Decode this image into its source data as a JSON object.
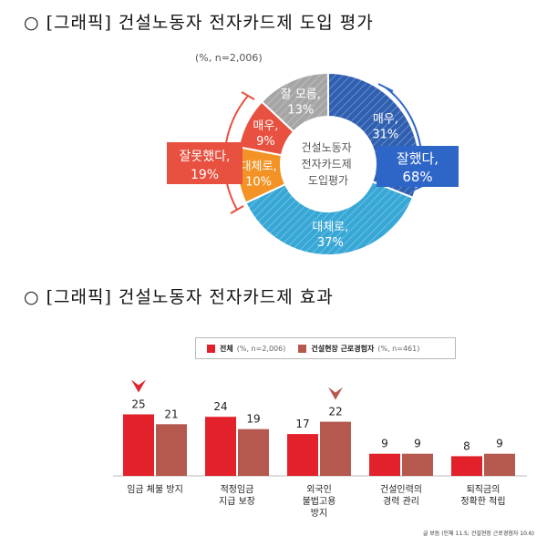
{
  "section1": {
    "title": "○ [그래픽] 건설노동자 전자카드제 도입 평가"
  },
  "section2": {
    "title": "○ [그래픽] 건설노동자 전자카드제 효과"
  },
  "chart_data": [
    {
      "type": "pie",
      "subtitle": "(%, n=2,006)",
      "center_label": [
        "건설노동자",
        "전자카드제",
        "도입평가"
      ],
      "slices": [
        {
          "label": "매우,",
          "value": 31,
          "color": "#2f5fb0",
          "hatch": true
        },
        {
          "label": "대체로,",
          "value": 37,
          "color": "#37a7d6",
          "hatch": true
        },
        {
          "label": "대체로,",
          "value": 10,
          "color": "#f39325",
          "hatch": false
        },
        {
          "label": "매우,",
          "value": 9,
          "color": "#e8503f",
          "hatch": false
        },
        {
          "label": "잘 모름,",
          "value": 13,
          "color": "#a5a5a5",
          "hatch": true
        }
      ],
      "callouts": [
        {
          "label": "잘했다,",
          "value": "68%",
          "color": "#2e66c8"
        },
        {
          "label": "잘못했다,",
          "value": "19%",
          "color": "#e8503f"
        }
      ]
    },
    {
      "type": "bar",
      "categories": [
        [
          "임금 체불 방지"
        ],
        [
          "적정임금",
          "지급 보장"
        ],
        [
          "외국인",
          "불법고용",
          "방지"
        ],
        [
          "건설인력의",
          "경력 관리"
        ],
        [
          "퇴직금의",
          "정확한 적립"
        ]
      ],
      "series": [
        {
          "name": "전체",
          "note": "(%, n=2,006)",
          "values": [
            25,
            24,
            17,
            9,
            8
          ],
          "color": "#e3212b"
        },
        {
          "name": "건설현장 근로경험자",
          "note": "(%, n=461)",
          "values": [
            21,
            19,
            22,
            9,
            9
          ],
          "color": "#b5594e"
        }
      ],
      "ylim": [
        0,
        25
      ],
      "legend": "top",
      "highlight": [
        {
          "series": 0,
          "category": 0,
          "color": "#e3212b"
        },
        {
          "series": 1,
          "category": 2,
          "color": "#b5594e"
        }
      ]
    }
  ],
  "source": "글 보듬 (인체 11.5; 건설현장 근로경험자 10.6)"
}
